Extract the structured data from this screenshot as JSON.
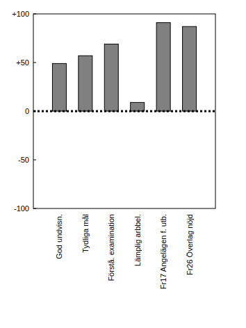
{
  "chart_data": {
    "type": "bar",
    "categories": [
      "God undvisn.",
      "Tydliga mål",
      "Förstå. examination",
      "Lämplig arbbel.",
      "Fr17 Angelägen f. utb.",
      "Fr26 Överlag nöjd"
    ],
    "values": [
      49,
      57,
      69,
      9,
      91,
      87
    ],
    "color": "#808080",
    "ylim": [
      -100,
      100
    ],
    "yticks": [
      {
        "value": -100,
        "label": "-100"
      },
      {
        "value": -50,
        "label": "-50"
      },
      {
        "value": 0,
        "label": "0"
      },
      {
        "value": 50,
        "label": "+50"
      },
      {
        "value": 100,
        "label": "+100"
      }
    ],
    "grid": false
  }
}
